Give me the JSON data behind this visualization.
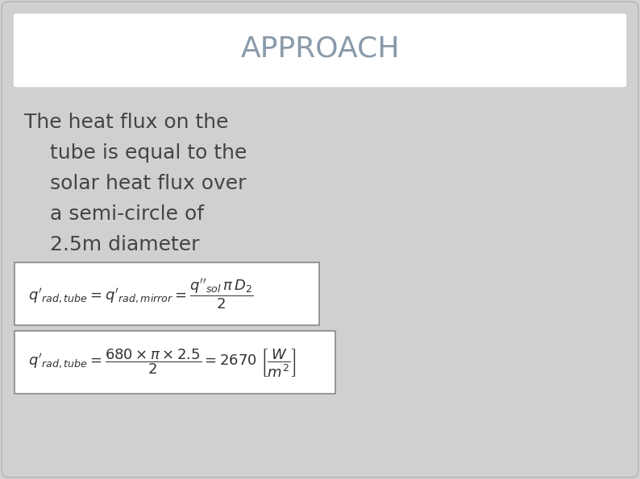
{
  "title": "APPROACH",
  "title_color": "#8a9aaa",
  "background_color": "#d4d4d4",
  "slide_bg": "#d0d0d0",
  "title_box_color": "#ffffff",
  "body_text_lines": [
    "The heat flux on the",
    "    tube is equal to the",
    "    solar heat flux over",
    "    a semi-circle of",
    "    2.5m diameter"
  ],
  "body_text_color": "#444444",
  "eq1_latex": "$q'_{rad,tube} = q'_{rad,mirror} = \\dfrac{q''_{sol}\\, \\pi\\, D_2}{2}$",
  "eq2_latex": "$q'_{rad,tube} = \\dfrac{680 \\times \\pi \\times 2.5}{2} = 2670\\; \\left[\\dfrac{W}{m^2}\\right]$",
  "eq_box_color": "#ffffff",
  "eq_text_color": "#333333"
}
